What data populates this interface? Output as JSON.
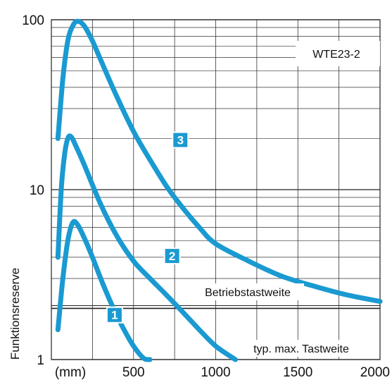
{
  "chart_data": {
    "type": "line",
    "title": "",
    "xlabel": "",
    "ylabel": "Funktionsreserve",
    "x_unit_label": "(mm)",
    "xlim": [
      0,
      2000
    ],
    "ylim": [
      1,
      100
    ],
    "y_scale": "log",
    "x_ticks": [
      500,
      1000,
      1500,
      2000
    ],
    "y_ticks": [
      1,
      10,
      100
    ],
    "grid": true,
    "series_color": "#1a9ad1",
    "badge_color": "#1a9ad1",
    "series": [
      {
        "name": "1",
        "x": [
          40,
          70,
          100,
          130,
          160,
          200,
          250,
          300,
          350,
          400,
          450,
          500,
          560,
          600
        ],
        "y": [
          1.5,
          3.0,
          5.0,
          6.4,
          6.2,
          5.2,
          4.0,
          3.0,
          2.3,
          1.8,
          1.45,
          1.2,
          1.02,
          1.0
        ]
      },
      {
        "name": "2",
        "x": [
          40,
          60,
          80,
          100,
          120,
          150,
          200,
          300,
          400,
          500,
          600,
          700,
          800,
          900,
          1000,
          1120
        ],
        "y": [
          4.0,
          10.0,
          16.0,
          20.0,
          20.5,
          18.0,
          14.0,
          8.2,
          5.3,
          3.8,
          3.0,
          2.4,
          1.9,
          1.5,
          1.2,
          1.0
        ]
      },
      {
        "name": "3",
        "x": [
          40,
          70,
          100,
          130,
          160,
          200,
          250,
          300,
          400,
          500,
          600,
          700,
          800,
          900,
          1000,
          1200,
          1400,
          1600,
          1800,
          2000
        ],
        "y": [
          20.0,
          45.0,
          75.0,
          92.0,
          98.0,
          92.0,
          75.0,
          58.0,
          35.0,
          22.0,
          15.0,
          10.5,
          7.8,
          6.0,
          4.8,
          3.8,
          3.1,
          2.7,
          2.4,
          2.2
        ]
      }
    ],
    "annotations": {
      "model": "WTE23-2",
      "operating_range": "Betriebstastweite",
      "max_range": "typ. max. Tastweite",
      "operating_range_value": 2.0
    }
  }
}
